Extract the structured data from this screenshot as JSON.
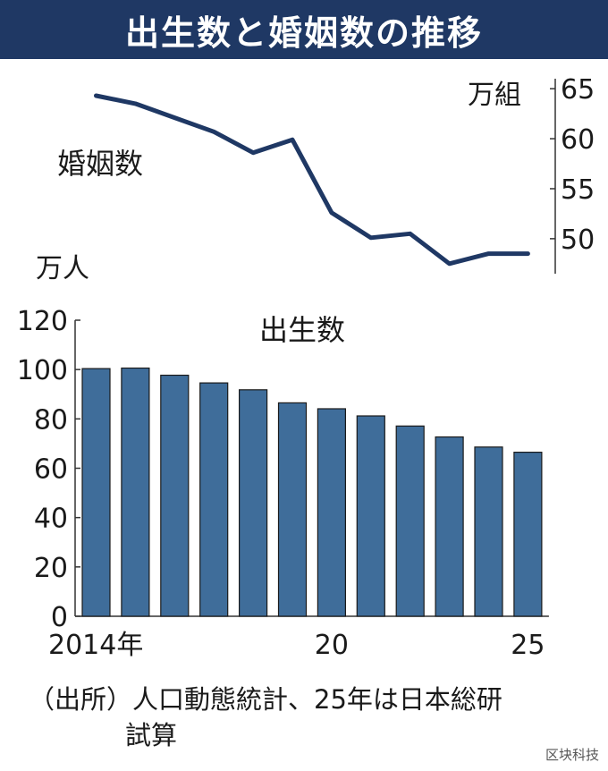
{
  "title": "出生数と婚姻数の推移",
  "chart_data": [
    {
      "type": "line",
      "name": "婚姻数",
      "unit": "万組",
      "x": [
        2014,
        2015,
        2016,
        2017,
        2018,
        2019,
        2020,
        2021,
        2022,
        2023,
        2024,
        2025
      ],
      "values": [
        64.3,
        63.5,
        62.1,
        60.7,
        58.6,
        59.9,
        52.6,
        50.1,
        50.5,
        47.5,
        48.5,
        48.5
      ],
      "ylim": [
        46.5,
        66
      ],
      "y_ticks": [
        "65",
        "60",
        "55",
        "50"
      ],
      "y_axis_side": "right",
      "color": "#1f3864"
    },
    {
      "type": "bar",
      "name": "出生数",
      "unit": "万人",
      "x": [
        2014,
        2015,
        2016,
        2017,
        2018,
        2019,
        2020,
        2021,
        2022,
        2023,
        2024,
        2025
      ],
      "values": [
        100.4,
        100.6,
        97.7,
        94.6,
        91.8,
        86.5,
        84.1,
        81.2,
        77.1,
        72.7,
        68.6,
        66.5
      ],
      "ylim": [
        0,
        120
      ],
      "y_ticks": [
        "120",
        "100",
        "80",
        "60",
        "40",
        "20",
        "0"
      ],
      "x_tick_labels": [
        "2014年",
        "20",
        "25"
      ],
      "color": "#3f6d9a"
    }
  ],
  "source": {
    "line1": "（出所）人口動態統計、25年は日本総研",
    "line2": "試算"
  },
  "watermark": "区块科技"
}
